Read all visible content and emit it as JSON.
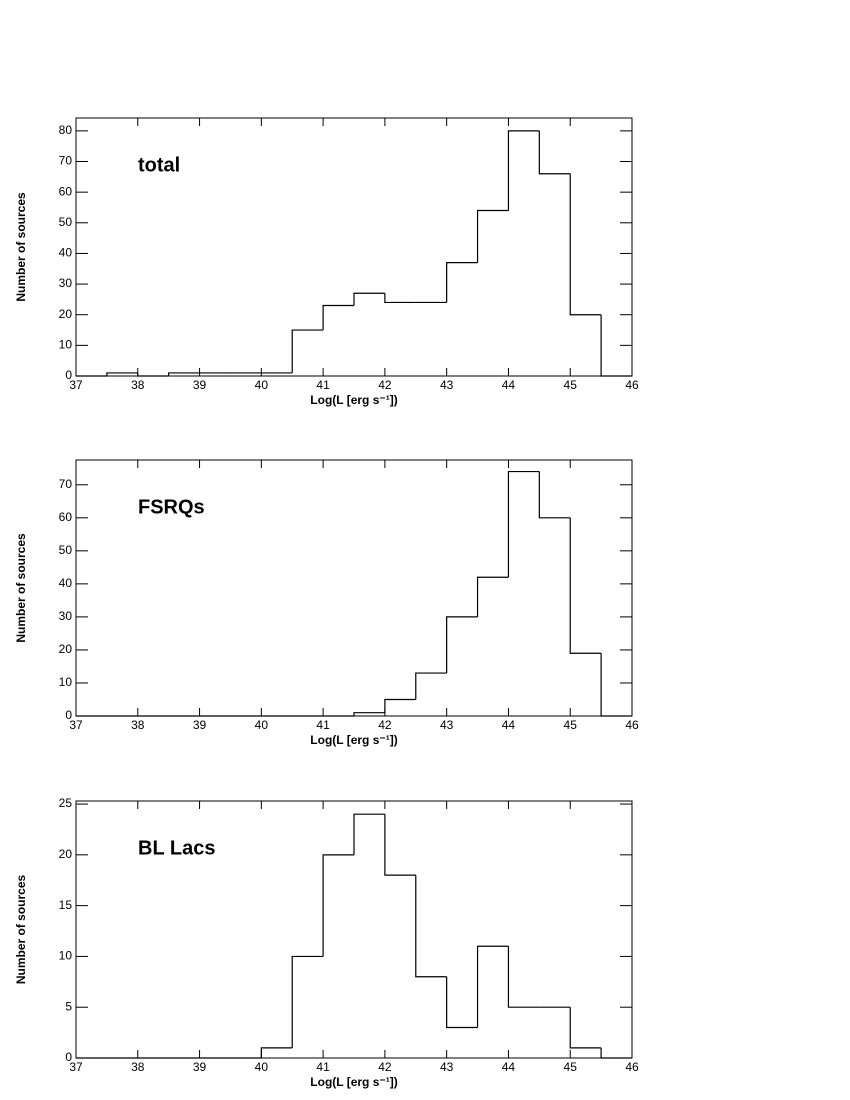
{
  "chart_data": [
    {
      "type": "histogram",
      "title": "total",
      "x_label": "Log(L [erg s⁻¹])",
      "y_label": "Number of sources",
      "color": "#000000",
      "bins": [
        37,
        37.5,
        38,
        38.5,
        39,
        39.5,
        40,
        40.5,
        41,
        41.5,
        42,
        42.5,
        43,
        43.5,
        44,
        44.5,
        45,
        45.5,
        46
      ],
      "values": [
        0,
        1,
        0,
        1,
        1,
        1,
        1,
        15,
        23,
        27,
        24,
        24,
        37,
        54,
        80,
        66,
        20,
        0
      ],
      "xlim": [
        37,
        46
      ],
      "xticks": [
        37,
        38,
        39,
        40,
        41,
        42,
        43,
        44,
        45,
        46
      ],
      "ylim": [
        0,
        84.2
      ],
      "yticks": [
        0,
        10,
        20,
        30,
        40,
        50,
        60,
        70,
        80
      ]
    },
    {
      "type": "histogram",
      "title": "FSRQs",
      "x_label": "Log(L [erg s⁻¹])",
      "y_label": "Number of sources",
      "color": "#000000",
      "bins": [
        37,
        37.5,
        38,
        38.5,
        39,
        39.5,
        40,
        40.5,
        41,
        41.5,
        42,
        42.5,
        43,
        43.5,
        44,
        44.5,
        45,
        45.5,
        46
      ],
      "values": [
        0,
        0,
        0,
        0,
        0,
        0,
        0,
        0,
        0,
        1,
        5,
        13,
        30,
        42,
        74,
        60,
        19,
        0
      ],
      "xlim": [
        37,
        46
      ],
      "xticks": [
        37,
        38,
        39,
        40,
        41,
        42,
        43,
        44,
        45,
        46
      ],
      "ylim": [
        0,
        77.5
      ],
      "yticks": [
        0,
        10,
        20,
        30,
        40,
        50,
        60,
        70
      ]
    },
    {
      "type": "histogram",
      "title": "BL Lacs",
      "x_label": "Log(L [erg s⁻¹])",
      "y_label": "Number of sources",
      "color": "#000000",
      "bins": [
        37,
        37.5,
        38,
        38.5,
        39,
        39.5,
        40,
        40.5,
        41,
        41.5,
        42,
        42.5,
        43,
        43.5,
        44,
        44.5,
        45,
        45.5,
        46
      ],
      "values": [
        0,
        0,
        0,
        0,
        0,
        0,
        1,
        10,
        20,
        24,
        18,
        8,
        3,
        11,
        5,
        5,
        1,
        0
      ],
      "xlim": [
        37,
        46
      ],
      "xticks": [
        37,
        38,
        39,
        40,
        41,
        42,
        43,
        44,
        45,
        46
      ],
      "ylim": [
        0,
        25.3
      ],
      "yticks": [
        0,
        5,
        10,
        15,
        20,
        25
      ]
    }
  ]
}
